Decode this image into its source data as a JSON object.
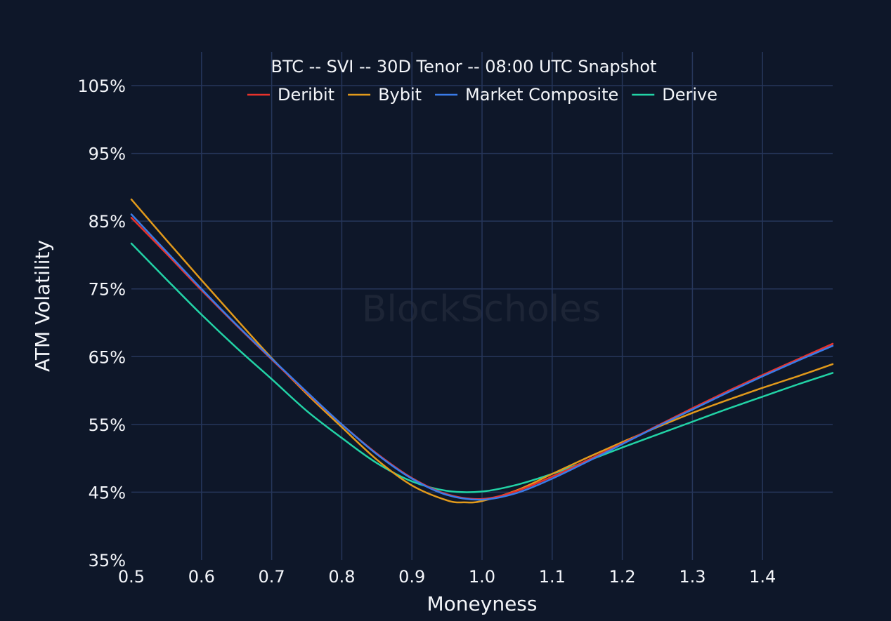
{
  "watermark": "BlockScholes",
  "chart_data": {
    "type": "line",
    "title": "BTC -- SVI -- 30D Tenor -- 08:00 UTC Snapshot",
    "xlabel": "Moneyness",
    "ylabel": "ATM Volatility",
    "xlim": [
      0.5,
      1.5
    ],
    "ylim": [
      35,
      105
    ],
    "x_ticks": [
      0.5,
      0.6,
      0.7,
      0.8,
      0.9,
      1.0,
      1.1,
      1.2,
      1.3,
      1.4
    ],
    "x_tick_labels": [
      "0.5",
      "0.6",
      "0.7",
      "0.8",
      "0.9",
      "1.0",
      "1.1",
      "1.2",
      "1.3",
      "1.4"
    ],
    "y_ticks": [
      35,
      45,
      55,
      65,
      75,
      85,
      95,
      105
    ],
    "y_tick_labels": [
      "35%",
      "45%",
      "55%",
      "65%",
      "75%",
      "85%",
      "95%",
      "105%"
    ],
    "grid": true,
    "legend_position": "top-center",
    "series": [
      {
        "name": "Deribit",
        "color": "#e8322b",
        "x": [
          0.5,
          0.55,
          0.6,
          0.65,
          0.7,
          0.75,
          0.8,
          0.85,
          0.9,
          0.95,
          1.0,
          1.05,
          1.1,
          1.15,
          1.2,
          1.25,
          1.3,
          1.35,
          1.4,
          1.45,
          1.5
        ],
        "y": [
          85.5,
          80.2,
          74.8,
          69.6,
          64.6,
          59.7,
          55.0,
          50.7,
          47.1,
          44.7,
          44.0,
          45.2,
          47.3,
          49.7,
          52.2,
          54.8,
          57.4,
          59.9,
          62.3,
          64.6,
          66.9
        ]
      },
      {
        "name": "Bybit",
        "color": "#e29a1b",
        "x": [
          0.5,
          0.55,
          0.6,
          0.65,
          0.7,
          0.75,
          0.8,
          0.85,
          0.9,
          0.95,
          0.975,
          1.0,
          1.05,
          1.1,
          1.15,
          1.2,
          1.25,
          1.3,
          1.35,
          1.4,
          1.45,
          1.5
        ],
        "y": [
          88.2,
          82.2,
          76.3,
          70.5,
          64.8,
          59.5,
          54.6,
          49.8,
          46.0,
          43.8,
          43.5,
          43.7,
          45.3,
          47.7,
          50.1,
          52.4,
          54.6,
          56.7,
          58.6,
          60.4,
          62.1,
          63.9
        ]
      },
      {
        "name": "Market Composite",
        "color": "#3a7be8",
        "x": [
          0.5,
          0.55,
          0.6,
          0.65,
          0.7,
          0.75,
          0.8,
          0.85,
          0.9,
          0.95,
          1.0,
          1.05,
          1.1,
          1.15,
          1.2,
          1.25,
          1.3,
          1.35,
          1.4,
          1.45,
          1.5
        ],
        "y": [
          86.0,
          80.5,
          75.0,
          69.7,
          64.7,
          59.8,
          55.0,
          50.6,
          47.0,
          44.6,
          43.9,
          44.9,
          47.0,
          49.5,
          52.1,
          54.7,
          57.2,
          59.7,
          62.1,
          64.4,
          66.6
        ]
      },
      {
        "name": "Derive",
        "color": "#22d3a6",
        "x": [
          0.5,
          0.55,
          0.6,
          0.65,
          0.7,
          0.75,
          0.8,
          0.85,
          0.9,
          0.95,
          1.0,
          1.05,
          1.1,
          1.15,
          1.2,
          1.25,
          1.3,
          1.35,
          1.4,
          1.45,
          1.5
        ],
        "y": [
          81.7,
          76.4,
          71.2,
          66.3,
          61.7,
          57.0,
          53.0,
          49.3,
          46.6,
          45.2,
          45.1,
          46.1,
          47.7,
          49.6,
          51.6,
          53.5,
          55.4,
          57.3,
          59.1,
          60.9,
          62.6
        ]
      }
    ]
  }
}
